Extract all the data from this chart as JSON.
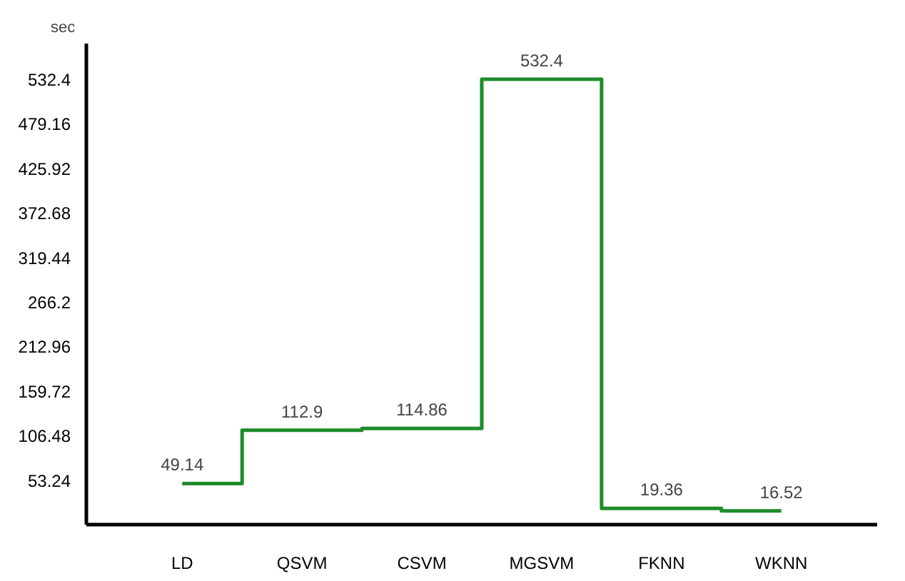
{
  "chart_data": {
    "type": "step",
    "ylabel": "sec",
    "categories": [
      "LD",
      "QSVM",
      "CSVM",
      "MGSVM",
      "FKNN",
      "WKNN"
    ],
    "series": [
      {
        "color": "#1e8c2a",
        "values": [
          49.14,
          112.9,
          114.86,
          532.4,
          19.36,
          16.52
        ]
      }
    ],
    "data_labels": true,
    "ylim": [
      0,
      575
    ],
    "yticks": [
      53.24,
      106.48,
      159.72,
      212.96,
      266.2,
      319.44,
      372.68,
      425.92,
      479.16,
      532.4
    ],
    "grid": false
  }
}
